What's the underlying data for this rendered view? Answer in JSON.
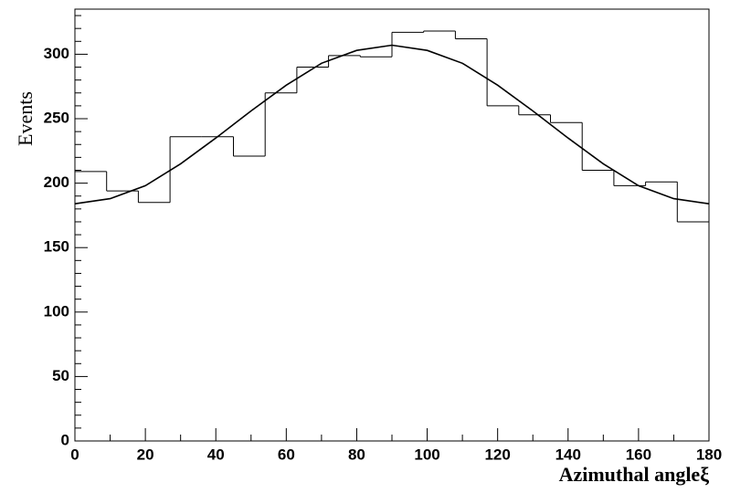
{
  "chart_data": {
    "type": "histogram",
    "xlabel": "Azimuthal angleξ",
    "ylabel": "Events",
    "bins": [
      0,
      9,
      18,
      27,
      36,
      45,
      54,
      63,
      72,
      81,
      90,
      99,
      108,
      117,
      126,
      135,
      144,
      153,
      162,
      171,
      180
    ],
    "values": [
      209,
      194,
      185,
      236,
      236,
      221,
      270,
      290,
      299,
      298,
      317,
      318,
      312,
      260,
      253,
      247,
      210,
      198,
      201,
      170
    ],
    "color": "#000000",
    "fit": {
      "x": [
        0,
        10,
        20,
        30,
        40,
        50,
        60,
        70,
        80,
        90,
        100,
        110,
        120,
        130,
        140,
        150,
        160,
        170,
        180
      ],
      "values": [
        184,
        188,
        198,
        215,
        235,
        256,
        276,
        293,
        303,
        307,
        303,
        293,
        276,
        256,
        235,
        215,
        198,
        188,
        184
      ],
      "color": "#000000"
    },
    "xlim": [
      0,
      180
    ],
    "ylim": [
      0,
      335
    ],
    "xticks": [
      0,
      20,
      40,
      60,
      80,
      100,
      120,
      140,
      160,
      180
    ],
    "yticks": [
      0,
      50,
      100,
      150,
      200,
      250,
      300
    ]
  }
}
